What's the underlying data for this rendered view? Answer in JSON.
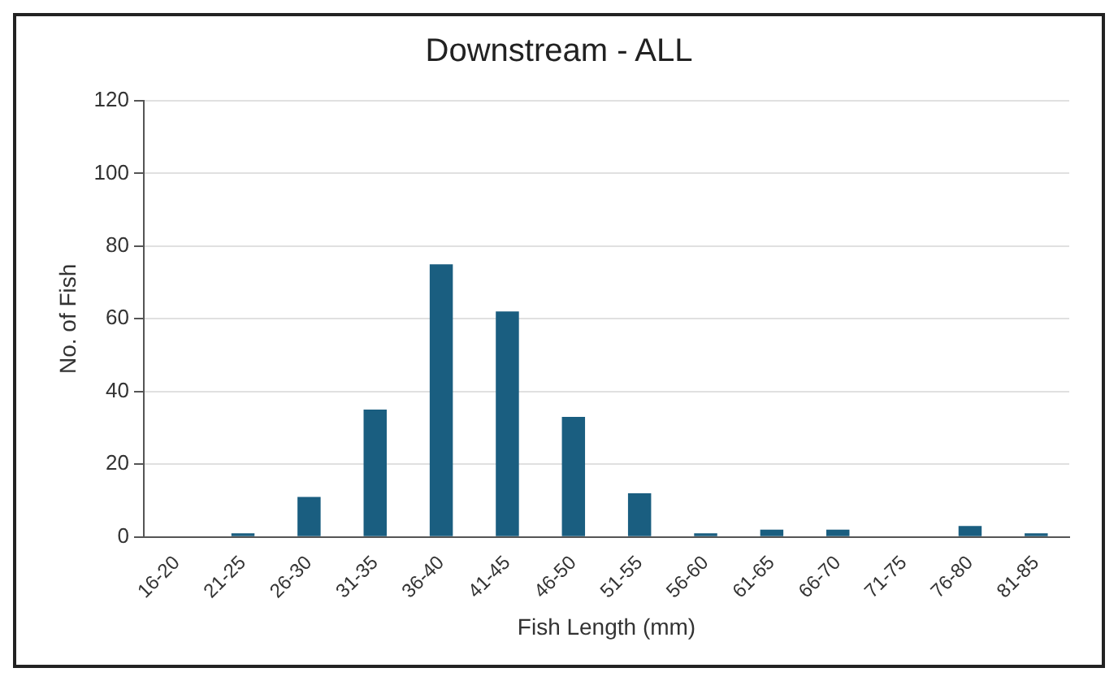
{
  "chart_data": {
    "type": "bar",
    "title": "Downstream - ALL",
    "xlabel": "Fish Length (mm)",
    "ylabel": "No. of Fish",
    "categories": [
      "16-20",
      "21-25",
      "26-30",
      "31-35",
      "36-40",
      "41-45",
      "46-50",
      "51-55",
      "56-60",
      "61-65",
      "66-70",
      "71-75",
      "76-80",
      "81-85"
    ],
    "values": [
      0,
      1,
      11,
      35,
      75,
      62,
      33,
      12,
      1,
      2,
      2,
      0,
      3,
      1
    ],
    "color": "#1a5e80",
    "ylim": [
      0,
      120
    ],
    "yticks": [
      0,
      20,
      40,
      60,
      80,
      100,
      120
    ],
    "grid": "y",
    "legend": false
  }
}
